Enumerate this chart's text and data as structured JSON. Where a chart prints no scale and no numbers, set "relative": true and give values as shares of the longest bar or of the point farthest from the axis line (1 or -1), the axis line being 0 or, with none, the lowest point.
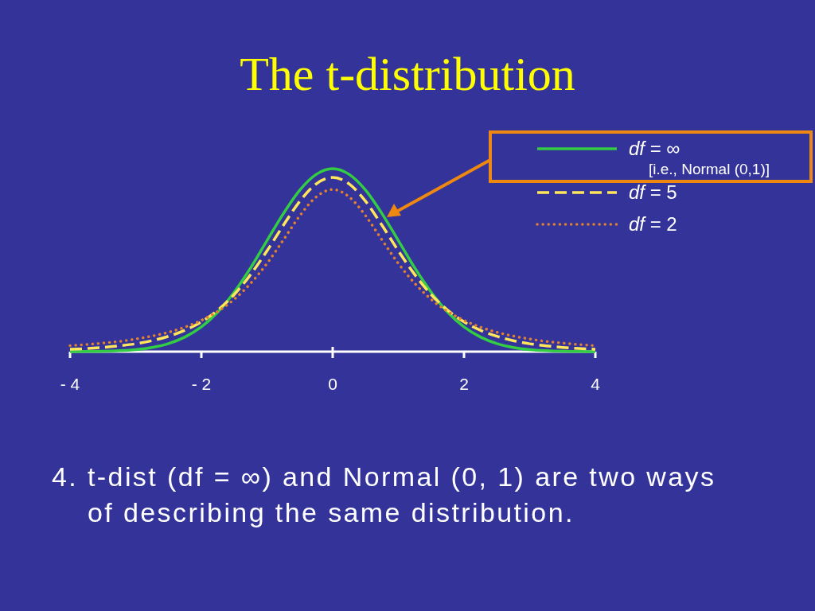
{
  "chart_data": {
    "type": "line",
    "title": "The t-distribution",
    "relative": true,
    "legend": "top right",
    "x": [
      -4,
      -3.75,
      -3.5,
      -3.25,
      -3,
      -2.75,
      -2.5,
      -2.25,
      -2,
      -1.75,
      -1.5,
      -1.25,
      -1,
      -0.75,
      -0.5,
      -0.25,
      0,
      0.25,
      0.5,
      0.75,
      1,
      1.25,
      1.5,
      1.75,
      2,
      2.25,
      2.5,
      2.75,
      3,
      3.25,
      3.5,
      3.75,
      4
    ],
    "xlim": [
      -4,
      4
    ],
    "xticks": [
      {
        "value": -4,
        "label": "- 4"
      },
      {
        "value": -2,
        "label": "- 2"
      },
      0,
      2,
      4
    ],
    "series": [
      {
        "name": "df = ∞\n[i.e., Normal (0,1)]",
        "color": "#33cc44",
        "line_style": "solid",
        "values": [
          0.0,
          0.001,
          0.002,
          0.005,
          0.011,
          0.023,
          0.044,
          0.08,
          0.135,
          0.216,
          0.325,
          0.458,
          0.607,
          0.755,
          0.883,
          0.969,
          1,
          0.969,
          0.883,
          0.755,
          0.607,
          0.458,
          0.325,
          0.216,
          0.135,
          0.08,
          0.044,
          0.023,
          0.011,
          0.005,
          0.002,
          0.001,
          0.0
        ]
      },
      {
        "name": "df = 5",
        "color": "#ffe65a",
        "line_style": "dashed",
        "values": [
          0.013,
          0.017,
          0.023,
          0.032,
          0.043,
          0.06,
          0.084,
          0.117,
          0.163,
          0.227,
          0.312,
          0.421,
          0.551,
          0.691,
          0.822,
          0.917,
          0.952,
          0.917,
          0.822,
          0.691,
          0.551,
          0.421,
          0.312,
          0.227,
          0.163,
          0.117,
          0.084,
          0.06,
          0.043,
          0.032,
          0.023,
          0.017,
          0.013
        ]
      },
      {
        "name": "df = 2",
        "color": "#e08030",
        "line_style": "dotted",
        "values": [
          0.033,
          0.039,
          0.047,
          0.056,
          0.069,
          0.085,
          0.106,
          0.134,
          0.171,
          0.22,
          0.286,
          0.373,
          0.482,
          0.611,
          0.743,
          0.846,
          0.886,
          0.846,
          0.743,
          0.611,
          0.482,
          0.373,
          0.286,
          0.22,
          0.171,
          0.134,
          0.106,
          0.085,
          0.069,
          0.056,
          0.047,
          0.039,
          0.033
        ]
      }
    ],
    "annotations": [
      "4. t-dist (df = ∞) and Normal (0, 1) are two ways of describing the same distribution."
    ]
  }
}
